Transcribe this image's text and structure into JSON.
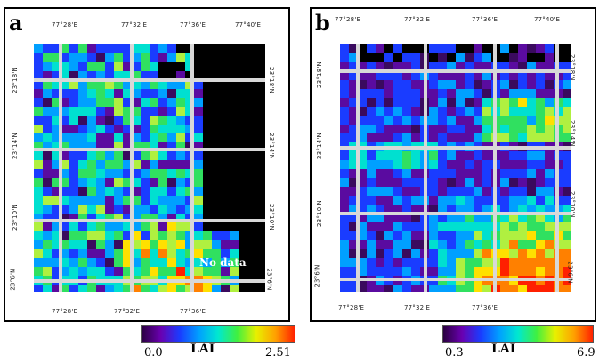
{
  "panels": [
    {
      "id": "a",
      "letter": "a",
      "top_ticks": [
        "77°28'E",
        "77°32'E",
        "77°36'E",
        "77°40'E"
      ],
      "bottom_ticks": [
        "77°28'E",
        "77°32'E",
        "77°36'E"
      ],
      "left_ticks": [
        "23°18'N",
        "23°14'N",
        "23°10'N",
        "23°6'N"
      ],
      "right_ticks": [
        "23°18'N",
        "23°14'N",
        "23°10'N",
        "23°6'N"
      ],
      "annotation": "No data",
      "colorbar": {
        "min_label": "0.0",
        "max_label": "2.51",
        "title": "LAI"
      },
      "seed": 7,
      "colors": [
        "#3a0a5e",
        "#5a0ba0",
        "#1a3cff",
        "#00a0ff",
        "#00e0d0",
        "#30e060",
        "#b0f040",
        "#ffe000",
        "#ff8000",
        "#ff2000"
      ]
    },
    {
      "id": "b",
      "letter": "b",
      "top_ticks": [
        "77°28'E",
        "77°32'E",
        "77°36'E",
        "77°40'E"
      ],
      "bottom_ticks": [
        "77°28'E",
        "77°32'E",
        "77°36'E"
      ],
      "left_ticks": [
        "23°18'N",
        "23°14'N",
        "23°10'N",
        "23°6'N"
      ],
      "right_ticks": [
        "23°18'N",
        "23°14'N",
        "23°10'N",
        "23°6'N"
      ],
      "annotation": "",
      "colorbar": {
        "min_label": "0.3",
        "max_label": "6.9",
        "title": "LAI"
      },
      "seed": 13,
      "colors": [
        "#3a0a5e",
        "#5a0ba0",
        "#1a3cff",
        "#00a0ff",
        "#00e0d0",
        "#30e060",
        "#b0f040",
        "#ffe000",
        "#ff8000",
        "#ff2000"
      ]
    }
  ],
  "colorbar_gradient": [
    "#2a0040",
    "#6a00b0",
    "#1a3cff",
    "#00a0ff",
    "#00e8d0",
    "#40f040",
    "#e8f000",
    "#ffa000",
    "#ff2000"
  ]
}
